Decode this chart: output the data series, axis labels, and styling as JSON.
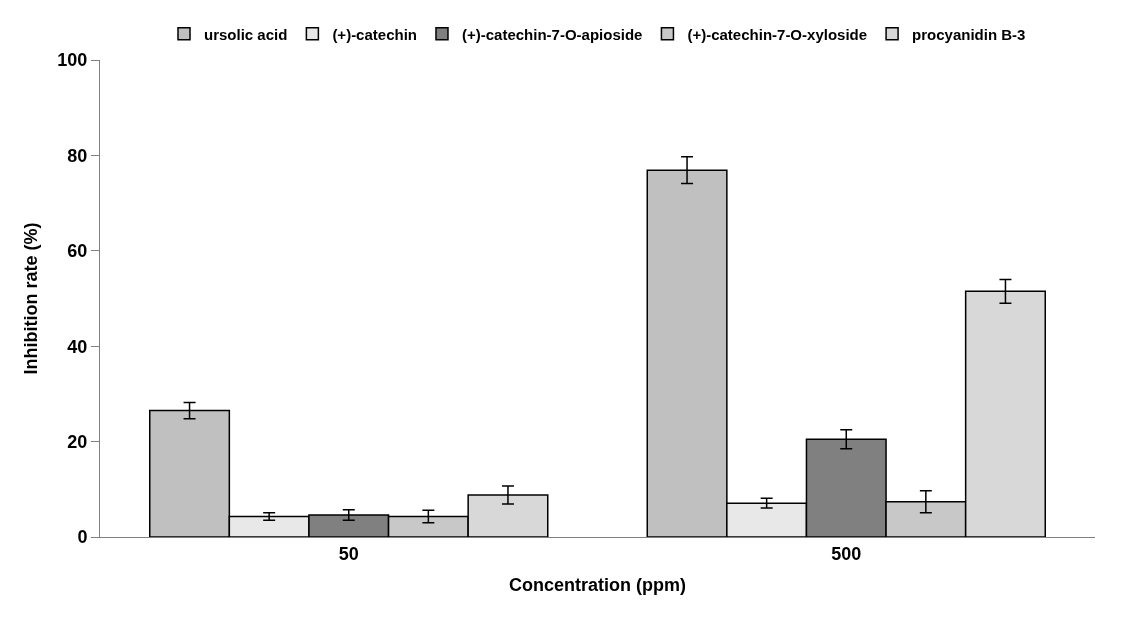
{
  "chart_data": {
    "type": "bar",
    "categories": [
      "50",
      "500"
    ],
    "xlabel": "Concentration (ppm)",
    "ylabel": "Inhibition rate (%)",
    "ylim": [
      0,
      100
    ],
    "yticks": [
      0,
      20,
      40,
      60,
      80,
      100
    ],
    "legend": "top",
    "series": [
      {
        "name": "ursolic acid",
        "color": "#c0c0c0",
        "values": [
          26.5,
          76.9
        ],
        "errors": [
          1.7,
          2.8
        ]
      },
      {
        "name": "(+)-catechin",
        "color": "#e8e8e8",
        "values": [
          4.3,
          7.1
        ],
        "errors": [
          0.8,
          1.0
        ]
      },
      {
        "name": "(+)-catechin-7-O-apioside",
        "color": "#808080",
        "values": [
          4.6,
          20.5
        ],
        "errors": [
          1.1,
          2.0
        ]
      },
      {
        "name": "(+)-catechin-7-O-xyloside",
        "color": "#c8c8c8",
        "values": [
          4.3,
          7.4
        ],
        "errors": [
          1.3,
          2.3
        ]
      },
      {
        "name": "procyanidin B-3",
        "color": "#d8d8d8",
        "values": [
          8.8,
          51.5
        ],
        "errors": [
          1.9,
          2.5
        ]
      }
    ]
  }
}
